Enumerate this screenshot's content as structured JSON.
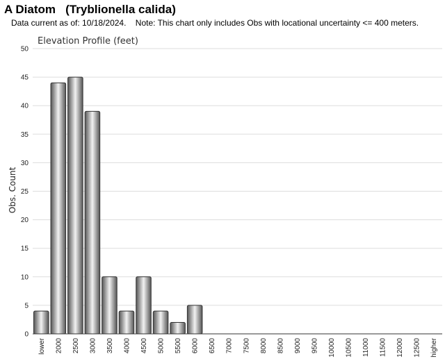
{
  "header": {
    "title": "A Diatom   (Tryblionella calida)",
    "subtitle": "Data current as of: 10/18/2024.    Note: This chart only includes Obs with locational uncertainty <= 400 meters."
  },
  "colors": {
    "bar_dark": "#555555",
    "bar_light": "#f2f2f2",
    "bar_stroke": "#333333",
    "grid": "#dddddd",
    "axis": "#333333"
  },
  "chart_data": {
    "type": "bar",
    "title": "Elevation Profile (feet)",
    "xlabel": "",
    "ylabel": "Obs. Count",
    "ylim": [
      0,
      50
    ],
    "yticks": [
      0,
      5,
      10,
      15,
      20,
      25,
      30,
      35,
      40,
      45,
      50
    ],
    "grid": true,
    "categories": [
      "lower",
      "2000",
      "2500",
      "3000",
      "3500",
      "4000",
      "4500",
      "5000",
      "5500",
      "6000",
      "6500",
      "7000",
      "7500",
      "8000",
      "8500",
      "9000",
      "9500",
      "10000",
      "10500",
      "11000",
      "11500",
      "12000",
      "12500",
      "higher"
    ],
    "values": [
      4,
      44,
      45,
      39,
      10,
      4,
      10,
      4,
      2,
      5,
      0,
      0,
      0,
      0,
      0,
      0,
      0,
      0,
      0,
      0,
      0,
      0,
      0,
      0
    ]
  }
}
